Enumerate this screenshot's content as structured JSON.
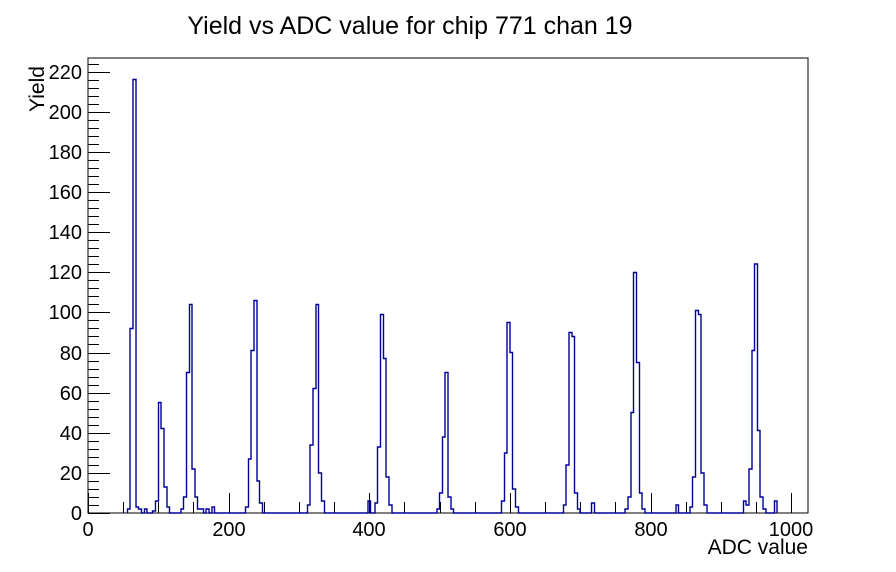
{
  "window": {
    "background": "#ffffff",
    "text_color": "#000000"
  },
  "chart_data": {
    "type": "bar",
    "title": "Yield vs ADC value for chip 771 chan 19",
    "xlabel": "ADC value",
    "ylabel": "Yield",
    "xlim": [
      0,
      1024
    ],
    "ylim": [
      0,
      226.8
    ],
    "grid": false,
    "legend": "none",
    "line_color": "#000099",
    "axis_color": "#000000",
    "bin_width": 4,
    "x_ticks": {
      "major": [
        0,
        200,
        400,
        600,
        800,
        1000
      ],
      "labels": [
        "0",
        "200",
        "400",
        "600",
        "800",
        "1000"
      ],
      "minor_step": 50
    },
    "y_ticks": {
      "major": [
        0,
        20,
        40,
        60,
        80,
        100,
        120,
        140,
        160,
        180,
        200,
        220
      ],
      "labels": [
        "0",
        "20",
        "40",
        "60",
        "80",
        "100",
        "120",
        "140",
        "160",
        "180",
        "200",
        "220"
      ],
      "minor_step": 4
    },
    "peak_positions": [
      64,
      102,
      146,
      238,
      326,
      418,
      510,
      598,
      688,
      778,
      866,
      950
    ],
    "peak_heights": [
      216,
      55,
      104,
      106,
      104,
      99,
      70,
      95,
      90,
      120,
      101,
      124
    ],
    "bins": [
      [
        56,
        2
      ],
      [
        60,
        92
      ],
      [
        64,
        216
      ],
      [
        68,
        3
      ],
      [
        72,
        2
      ],
      [
        80,
        2
      ],
      [
        92,
        1
      ],
      [
        96,
        6
      ],
      [
        100,
        55
      ],
      [
        104,
        42
      ],
      [
        108,
        13
      ],
      [
        112,
        3
      ],
      [
        132,
        2
      ],
      [
        136,
        8
      ],
      [
        140,
        70
      ],
      [
        144,
        104
      ],
      [
        148,
        22
      ],
      [
        152,
        8
      ],
      [
        156,
        2
      ],
      [
        160,
        2
      ],
      [
        168,
        2
      ],
      [
        176,
        3
      ],
      [
        224,
        3
      ],
      [
        228,
        27
      ],
      [
        232,
        81
      ],
      [
        236,
        106
      ],
      [
        240,
        16
      ],
      [
        244,
        5
      ],
      [
        312,
        4
      ],
      [
        316,
        34
      ],
      [
        320,
        62
      ],
      [
        324,
        104
      ],
      [
        328,
        20
      ],
      [
        332,
        6
      ],
      [
        398,
        6
      ],
      [
        408,
        5
      ],
      [
        412,
        33
      ],
      [
        416,
        99
      ],
      [
        420,
        77
      ],
      [
        424,
        18
      ],
      [
        428,
        4
      ],
      [
        496,
        2
      ],
      [
        500,
        10
      ],
      [
        504,
        38
      ],
      [
        508,
        70
      ],
      [
        512,
        8
      ],
      [
        516,
        2
      ],
      [
        588,
        6
      ],
      [
        592,
        30
      ],
      [
        596,
        95
      ],
      [
        600,
        80
      ],
      [
        604,
        12
      ],
      [
        608,
        3
      ],
      [
        676,
        4
      ],
      [
        680,
        24
      ],
      [
        684,
        90
      ],
      [
        688,
        88
      ],
      [
        692,
        10
      ],
      [
        696,
        2
      ],
      [
        716,
        5
      ],
      [
        764,
        2
      ],
      [
        768,
        8
      ],
      [
        772,
        50
      ],
      [
        776,
        120
      ],
      [
        780,
        75
      ],
      [
        784,
        10
      ],
      [
        788,
        2
      ],
      [
        836,
        4
      ],
      [
        856,
        3
      ],
      [
        860,
        18
      ],
      [
        864,
        101
      ],
      [
        868,
        99
      ],
      [
        872,
        20
      ],
      [
        876,
        4
      ],
      [
        932,
        6
      ],
      [
        936,
        4
      ],
      [
        940,
        22
      ],
      [
        944,
        81
      ],
      [
        948,
        124
      ],
      [
        952,
        41
      ],
      [
        956,
        8
      ],
      [
        960,
        2
      ],
      [
        976,
        6
      ]
    ]
  }
}
